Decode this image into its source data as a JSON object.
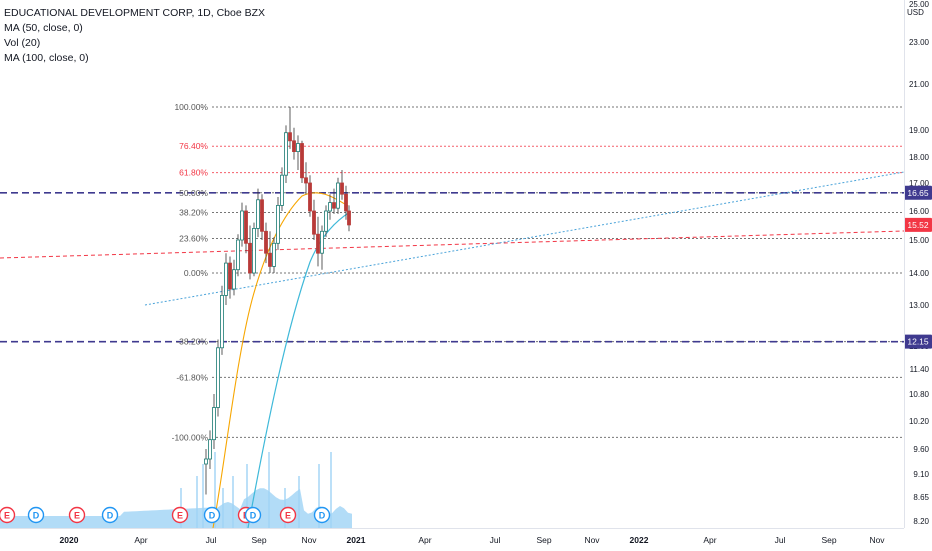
{
  "legend": {
    "symbol": "EDUCATIONAL DEVELOPMENT CORP, 1D, Cboe BZX",
    "ma50": "MA (50, close, 0)",
    "vol": "Vol (20)",
    "ma100": "MA (100, close, 0)"
  },
  "currency": "USD",
  "colors": {
    "fib_gray": "#555555",
    "fib_red": "#f23645",
    "dashed_level": "#3f3a8f",
    "trend_red": "#f23645",
    "trend_blue": "#4aa3d9",
    "ma50": "#f7a600",
    "ma100": "#3fb9d9",
    "volume": "#9fd3f5",
    "candle_up": "#26a69a",
    "candle_down": "#ef5350",
    "badge_e": "#f23645",
    "badge_d": "#2196f3",
    "price_tag_red": "#f23645",
    "price_tag_blue": "#3f3a8f"
  },
  "chart_data": {
    "type": "candlestick",
    "x_ticks": [
      "2020",
      "Apr",
      "Jul",
      "Sep",
      "Nov",
      "2021",
      "Apr",
      "Jul",
      "Sep",
      "Nov",
      "2022",
      "Apr",
      "Jul",
      "Sep",
      "Nov"
    ],
    "y_ticks": [
      25.0,
      23.0,
      21.0,
      19.0,
      18.0,
      17.0,
      16.0,
      15.0,
      14.0,
      13.0,
      12.05,
      11.4,
      10.8,
      10.2,
      9.6,
      9.1,
      8.65,
      8.2
    ],
    "y_tick_labels": [
      "25.00",
      "23.00",
      "21.00",
      "19.00",
      "18.00",
      "17.00",
      "16.00",
      "15.00",
      "14.00",
      "13.00",
      "12.05",
      "11.40",
      "10.80",
      "10.20",
      "9.60",
      "9.10",
      "8.65",
      "8.20"
    ],
    "fib_levels": [
      {
        "label": "100.00%",
        "price": 20.0,
        "color": "gray"
      },
      {
        "label": "76.40%",
        "price": 18.4,
        "color": "red"
      },
      {
        "label": "61.80%",
        "price": 17.4,
        "color": "red"
      },
      {
        "label": "50.00%",
        "price": 16.65,
        "color": "gray"
      },
      {
        "label": "38.20%",
        "price": 15.95,
        "color": "gray"
      },
      {
        "label": "23.60%",
        "price": 15.05,
        "color": "gray"
      },
      {
        "label": "0.00%",
        "price": 14.0,
        "color": "gray"
      },
      {
        "label": "-38.20%",
        "price": 12.15,
        "color": "gray"
      },
      {
        "label": "-61.80%",
        "price": 11.2,
        "color": "gray"
      },
      {
        "label": "-100.00%",
        "price": 9.85,
        "color": "gray"
      }
    ],
    "dashed_levels": [
      16.65,
      12.15
    ],
    "price_tags": [
      {
        "label": "16.65",
        "price": 16.65,
        "color": "blue"
      },
      {
        "label": "15.52",
        "price": 15.52,
        "color": "red"
      },
      {
        "label": "12.15",
        "price": 12.15,
        "color": "blue"
      }
    ],
    "events": [
      {
        "type": "E",
        "date": "2019-11"
      },
      {
        "type": "D",
        "date": "2019-12"
      },
      {
        "type": "E",
        "date": "2020-02"
      },
      {
        "type": "D",
        "date": "2020-03"
      },
      {
        "type": "E",
        "date": "2020-06"
      },
      {
        "type": "D",
        "date": "2020-07"
      },
      {
        "type": "E",
        "date": "2020-08"
      },
      {
        "type": "D",
        "date": "2020-09"
      },
      {
        "type": "E",
        "date": "2020-10"
      },
      {
        "type": "D",
        "date": "2020-11"
      }
    ]
  }
}
